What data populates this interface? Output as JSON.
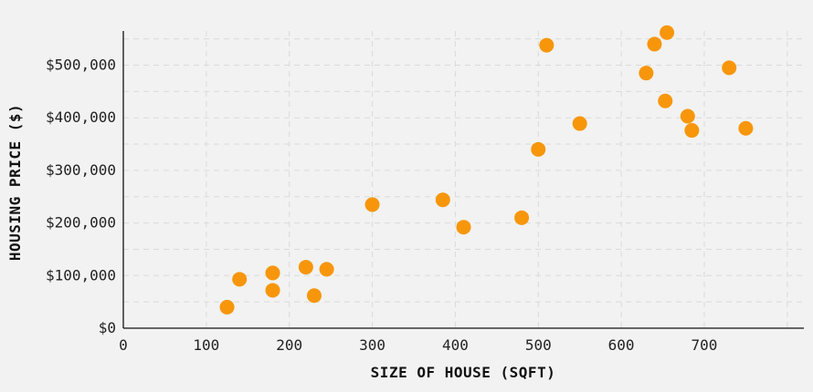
{
  "chart_data": {
    "type": "scatter",
    "xlabel": "SIZE OF HOUSE (SQFT)",
    "ylabel": "HOUSING PRICE ($)",
    "xlim": [
      0,
      820
    ],
    "ylim": [
      0,
      565000
    ],
    "x_ticks": [
      0,
      100,
      200,
      300,
      400,
      500,
      600,
      700
    ],
    "x_tick_labels": [
      "0",
      "100",
      "200",
      "300",
      "400",
      "500",
      "600",
      "700"
    ],
    "y_ticks": [
      0,
      100000,
      200000,
      300000,
      400000,
      500000
    ],
    "y_tick_labels": [
      "$0",
      "$100,000",
      "$200,000",
      "$300,000",
      "$400,000",
      "$500,000"
    ],
    "grid": true,
    "point_color": "#f7960b",
    "series": [
      {
        "points": [
          {
            "x": 125,
            "y": 40000
          },
          {
            "x": 140,
            "y": 93000
          },
          {
            "x": 180,
            "y": 105000
          },
          {
            "x": 180,
            "y": 72000
          },
          {
            "x": 220,
            "y": 116000
          },
          {
            "x": 230,
            "y": 62000
          },
          {
            "x": 245,
            "y": 112000
          },
          {
            "x": 300,
            "y": 235000
          },
          {
            "x": 385,
            "y": 244000
          },
          {
            "x": 410,
            "y": 192000
          },
          {
            "x": 480,
            "y": 210000
          },
          {
            "x": 500,
            "y": 340000
          },
          {
            "x": 510,
            "y": 538000
          },
          {
            "x": 550,
            "y": 389000
          },
          {
            "x": 630,
            "y": 485000
          },
          {
            "x": 640,
            "y": 540000
          },
          {
            "x": 653,
            "y": 432000
          },
          {
            "x": 655,
            "y": 562000
          },
          {
            "x": 680,
            "y": 403000
          },
          {
            "x": 685,
            "y": 376000
          },
          {
            "x": 730,
            "y": 495000
          },
          {
            "x": 750,
            "y": 380000
          }
        ]
      }
    ]
  }
}
